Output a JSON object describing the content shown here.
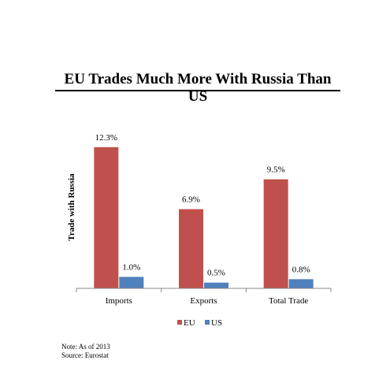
{
  "title": "EU Trades Much More With Russia Than US",
  "notes": {
    "line1": "Note: As of 2013",
    "line2": "Source: Eurostat"
  },
  "chart_data": {
    "type": "bar",
    "categories": [
      "Imports",
      "Exports",
      "Total Trade"
    ],
    "series": [
      {
        "name": "EU",
        "values": [
          12.3,
          6.9,
          9.5
        ],
        "labels": [
          "12.3%",
          "6.9%",
          "9.5%"
        ],
        "color": "#c0504d"
      },
      {
        "name": "US",
        "values": [
          1.0,
          0.5,
          0.8
        ],
        "labels": [
          "1.0%",
          "0.5%",
          "0.8%"
        ],
        "color": "#4f81bd"
      }
    ],
    "ylabel": "Trade with Russia",
    "ylim": [
      0,
      14
    ],
    "grid": false,
    "legend": "bottom"
  }
}
